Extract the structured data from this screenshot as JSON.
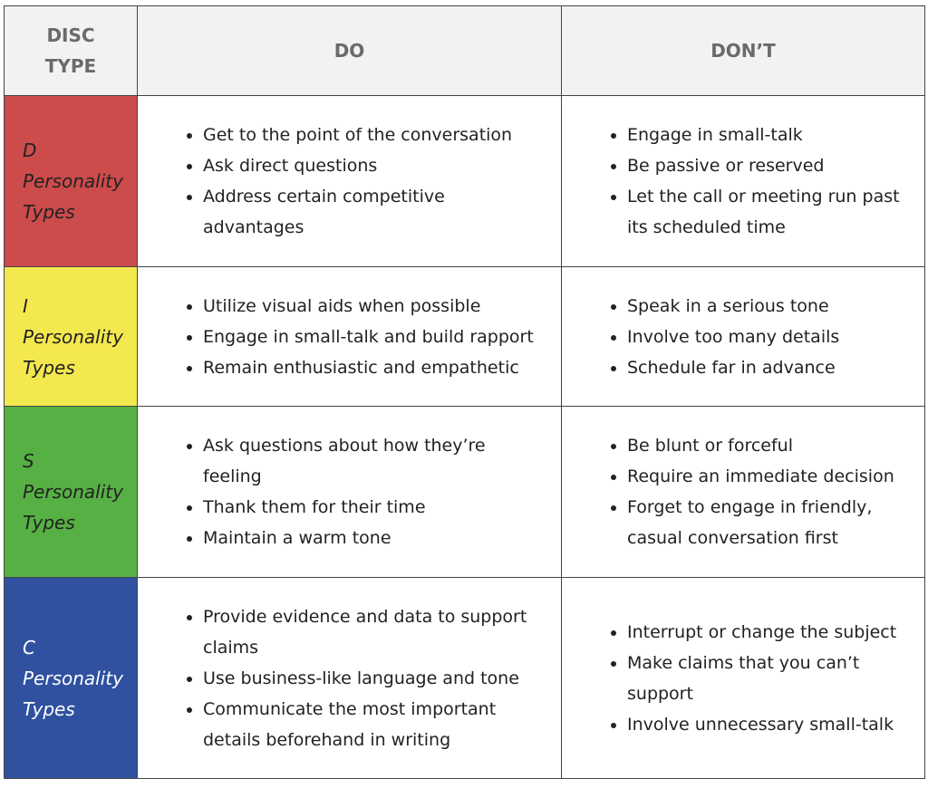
{
  "table": {
    "header": [
      "DISC TYPE",
      "DO",
      "DON’T"
    ],
    "rows": [
      {
        "type": "D",
        "label": "Personality Types",
        "do": [
          "Get to the point of the conversation",
          "Ask direct questions",
          "Address certain competitive advantages"
        ],
        "dont": [
          "Engage in small-talk",
          "Be passive or reserved",
          "Let the call or meeting run past its scheduled time"
        ]
      },
      {
        "type": "I",
        "label": "Personality Types",
        "do": [
          "Utilize visual aids when possible",
          "Engage in small-talk and build rapport",
          "Remain enthusiastic and empathetic"
        ],
        "dont": [
          "Speak in a serious tone",
          "Involve too many details",
          "Schedule far in advance"
        ]
      },
      {
        "type": "S",
        "label": "Personality Types",
        "do": [
          "Ask questions about how they’re feeling",
          "Thank them for their time",
          "Maintain a warm tone"
        ],
        "dont": [
          "Be blunt or forceful",
          "Require an immediate decision",
          "Forget to engage in friendly, casual conversation first"
        ]
      },
      {
        "type": "C",
        "label": "Personality Types",
        "do": [
          "Provide evidence and data to support claims",
          "Use business-like language and tone",
          "Communicate the most important details beforehand in writing"
        ],
        "dont": [
          "Interrupt or change the subject",
          "Make claims that you can’t support",
          "Involve unnecessary small-talk"
        ]
      }
    ]
  }
}
